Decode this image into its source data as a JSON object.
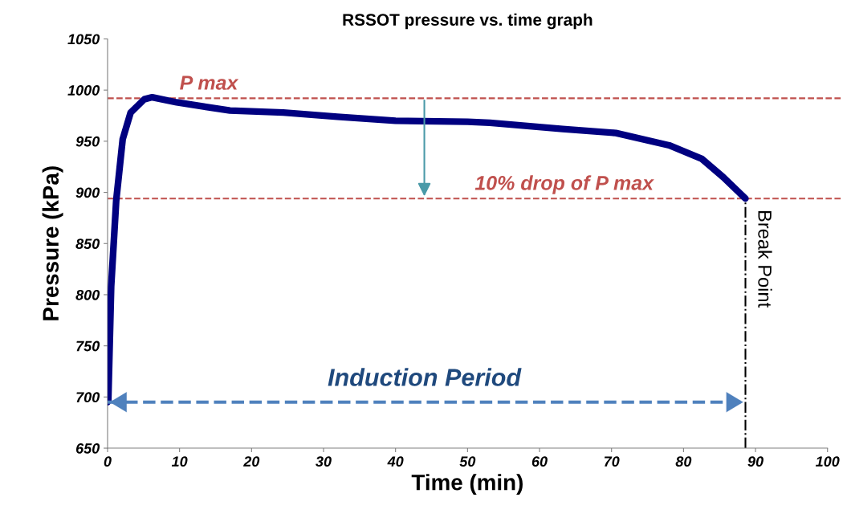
{
  "chart_data": {
    "type": "line",
    "title": "RSSOT pressure vs. time graph",
    "xlabel": "Time (min)",
    "ylabel": "Pressure (kPa)",
    "xlim": [
      0,
      100
    ],
    "xticks": [
      0,
      10,
      20,
      30,
      40,
      50,
      60,
      70,
      80,
      90,
      100
    ],
    "ylim": [
      650,
      1050
    ],
    "yticks": [
      650,
      700,
      750,
      800,
      850,
      900,
      950,
      1000,
      1050
    ],
    "grid": false,
    "legend": false,
    "marker": "none",
    "line_style": "solid",
    "series": [
      {
        "color": "#000080",
        "x": [
          0,
          0.1,
          0.5,
          1.2,
          2.1,
          3.2,
          5.1,
          6.2,
          9.6,
          17,
          24.4,
          31.9,
          40,
          50,
          53.1,
          63.2,
          70.6,
          78,
          82.5,
          85.5,
          88.6
        ],
        "values": [
          695,
          697,
          808,
          892,
          952,
          978,
          991,
          993,
          988,
          980,
          978,
          974,
          970,
          969,
          968,
          962,
          958,
          946,
          933,
          915,
          894
        ]
      },
      {
        "type": "line",
        "color": "#4f81bd",
        "line_style": "dashed",
        "x": [
          0,
          88.6
        ],
        "values": [
          695,
          695
        ]
      }
    ],
    "ref_lines": [
      {
        "axis": "y",
        "value": 992,
        "label": "P max",
        "color": "#c0504d",
        "line_style": "dashed"
      },
      {
        "axis": "y",
        "value": 894,
        "label": "10% drop of P max",
        "color": "#c0504d",
        "line_style": "dashed"
      },
      {
        "axis": "x",
        "value": 88.6,
        "label": "Break Point",
        "color": "#000000",
        "line_style": "dashdot"
      }
    ],
    "annotations": [
      {
        "text": "Induction Period",
        "x": 44,
        "y": 695
      }
    ]
  }
}
